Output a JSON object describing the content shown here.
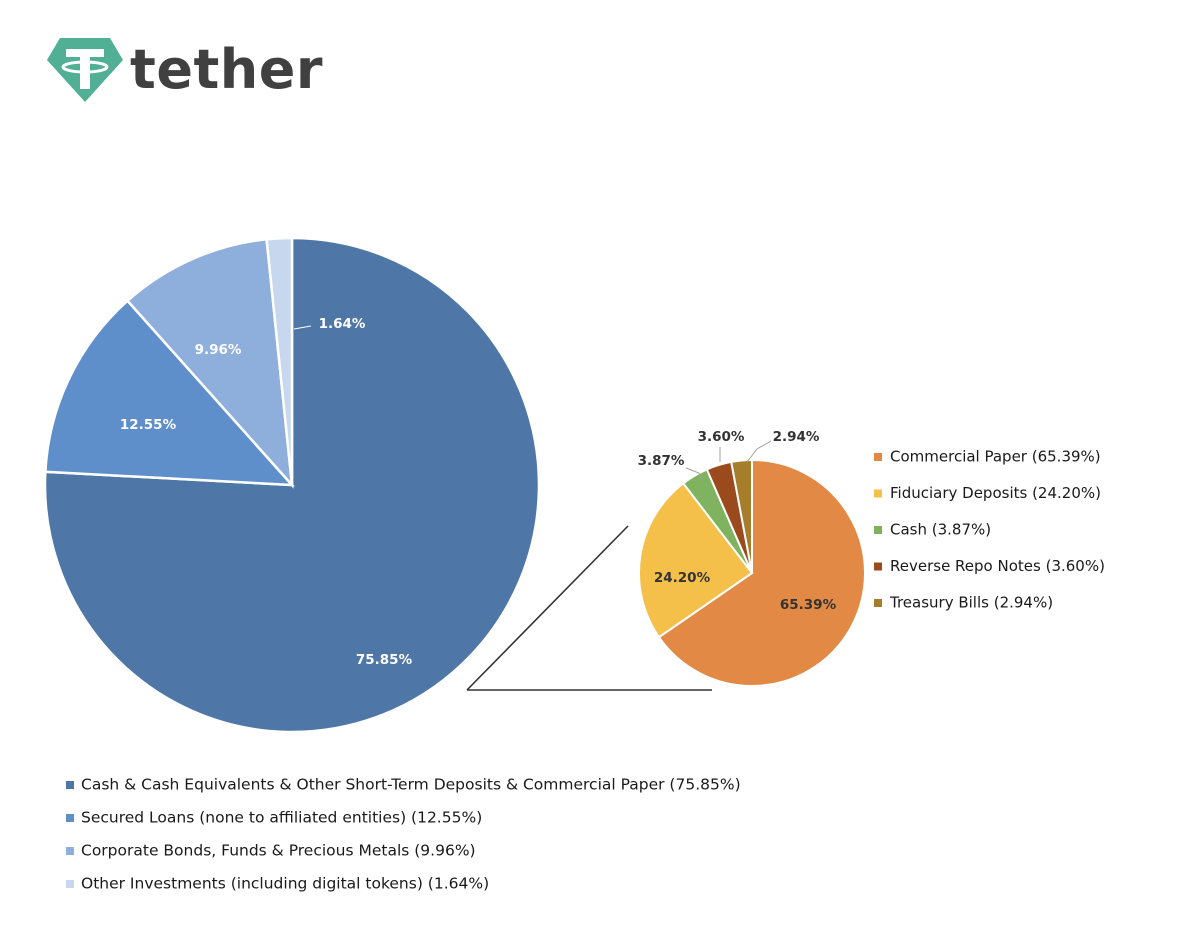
{
  "brand": {
    "name": "tether",
    "colors": {
      "mark": "#50af95",
      "text": "#404040"
    }
  },
  "chart_data": [
    {
      "type": "pie",
      "slices": [
        {
          "label": "Cash & Cash Equivalents & Other Short-Term Deposits & Commercial Paper (75.85%)",
          "value": 75.85,
          "display": "75.85%",
          "color": "#4e77a8"
        },
        {
          "label": "Secured Loans (none to affiliated entities) (12.55%)",
          "value": 12.55,
          "display": "12.55%",
          "color": "#5e8fca"
        },
        {
          "label": "Corporate Bonds, Funds & Precious Metals (9.96%)",
          "value": 9.96,
          "display": "9.96%",
          "color": "#8eaedb"
        },
        {
          "label": "Other Investments (including digital tokens) (1.64%)",
          "value": 1.64,
          "display": "1.64%",
          "color": "#c7d7ee"
        }
      ],
      "legend_position": "bottom"
    },
    {
      "type": "pie",
      "slices": [
        {
          "label": "Commercial Paper (65.39%)",
          "value": 65.39,
          "display": "65.39%",
          "color": "#e28a45"
        },
        {
          "label": "Fiduciary Deposits (24.20%)",
          "value": 24.2,
          "display": "24.20%",
          "color": "#f4c04a"
        },
        {
          "label": "Cash (3.87%)",
          "value": 3.87,
          "display": "3.87%",
          "color": "#7fb35f"
        },
        {
          "label": "Reverse Repo Notes (3.60%)",
          "value": 3.6,
          "display": "3.60%",
          "color": "#9b4a1e"
        },
        {
          "label": "Treasury Bills (2.94%)",
          "value": 2.94,
          "display": "2.94%",
          "color": "#a67d2a"
        }
      ],
      "legend_position": "right"
    }
  ]
}
